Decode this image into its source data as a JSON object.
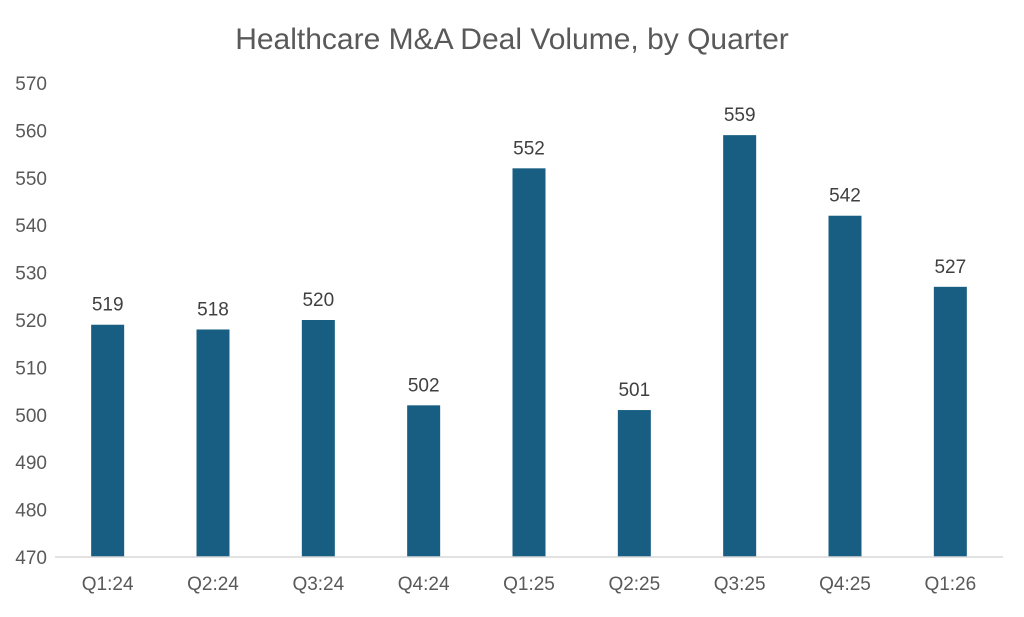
{
  "chart_data": {
    "type": "bar",
    "title": "Healthcare M&A Deal Volume, by Quarter",
    "xlabel": "",
    "ylabel": "",
    "categories": [
      "Q1:24",
      "Q2:24",
      "Q3:24",
      "Q4:24",
      "Q1:25",
      "Q2:25",
      "Q3:25",
      "Q4:25",
      "Q1:26"
    ],
    "values": [
      519,
      518,
      520,
      502,
      552,
      501,
      559,
      542,
      527
    ],
    "ylim": [
      470,
      570
    ],
    "yticks": [
      470,
      480,
      490,
      500,
      510,
      520,
      530,
      540,
      550,
      560,
      570
    ],
    "grid": false,
    "legend": "none",
    "data_labels": true,
    "colors": {
      "bar": "#175E82",
      "text": "#595959",
      "axis": "#D9D9D9"
    }
  }
}
